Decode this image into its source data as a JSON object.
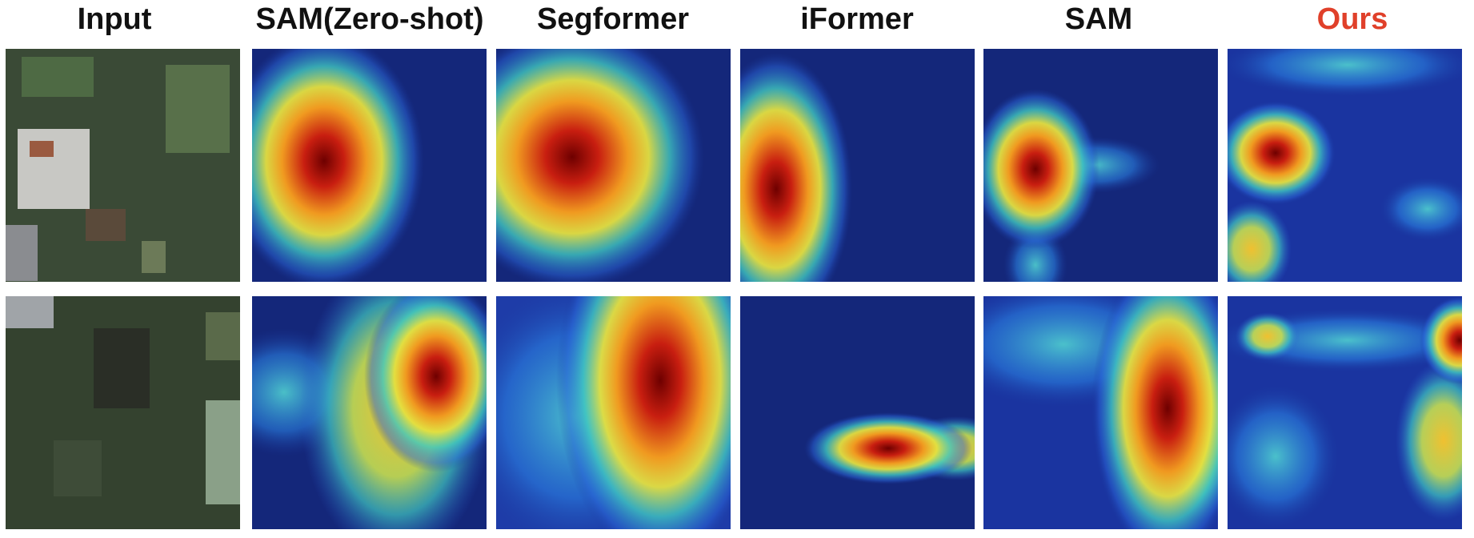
{
  "headers": [
    "Input",
    "SAM(Zero-shot)",
    "Segformer",
    "iFormer",
    "SAM",
    "Ours"
  ]
}
